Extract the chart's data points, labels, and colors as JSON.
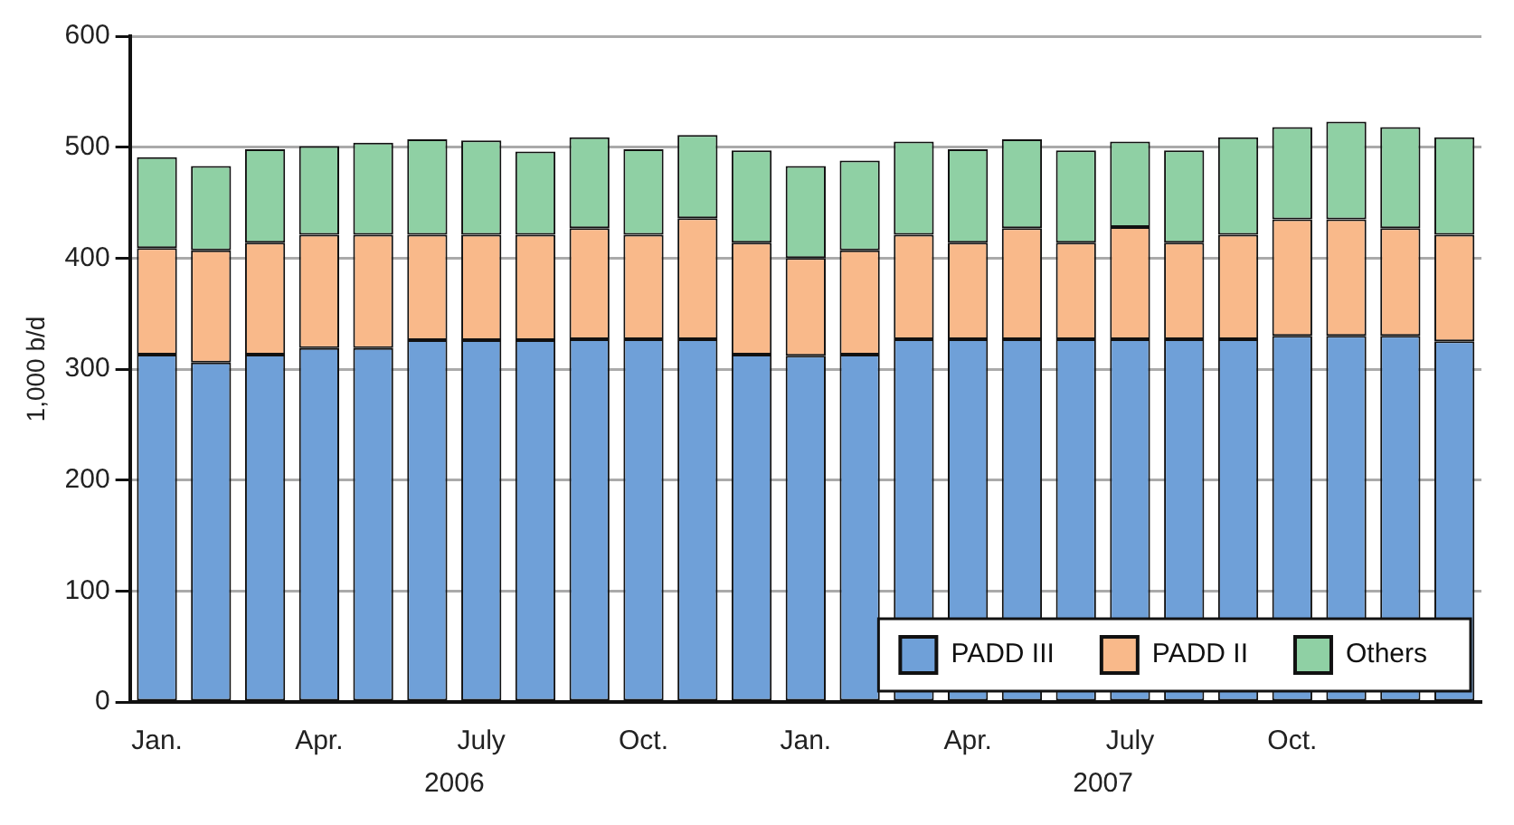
{
  "chart_data": {
    "type": "bar",
    "stacked": true,
    "ylabel": "1,000 b/d",
    "categories": [
      "Jan.",
      null,
      null,
      "Apr.",
      null,
      null,
      "July",
      null,
      null,
      "Oct.",
      null,
      null,
      "Jan.",
      null,
      null,
      "Apr.",
      null,
      null,
      "July",
      null,
      null,
      "Oct.",
      null,
      null,
      null
    ],
    "series": [
      {
        "name": "PADD III",
        "color": "#6fa0d8",
        "values": [
          313,
          306,
          313,
          319,
          319,
          326,
          326,
          326,
          327,
          327,
          327,
          313,
          312,
          313,
          327,
          327,
          327,
          327,
          327,
          327,
          327,
          330,
          330,
          330,
          325
        ]
      },
      {
        "name": "PADD II",
        "color": "#f9b98a",
        "values": [
          96,
          101,
          101,
          102,
          102,
          95,
          95,
          95,
          100,
          94,
          109,
          101,
          88,
          94,
          94,
          87,
          100,
          87,
          101,
          87,
          94,
          105,
          105,
          97,
          96
        ]
      },
      {
        "name": "Others",
        "color": "#8fd0a4",
        "values": [
          82,
          76,
          84,
          80,
          83,
          86,
          85,
          75,
          82,
          77,
          75,
          83,
          83,
          81,
          84,
          84,
          80,
          83,
          77,
          83,
          88,
          83,
          88,
          91,
          88
        ]
      }
    ],
    "ylim": [
      0,
      600
    ],
    "yticks": [
      0,
      100,
      200,
      300,
      400,
      500,
      600
    ],
    "grid": "y",
    "legend": "bottom right",
    "annotations": [
      "2006",
      "2007"
    ]
  }
}
